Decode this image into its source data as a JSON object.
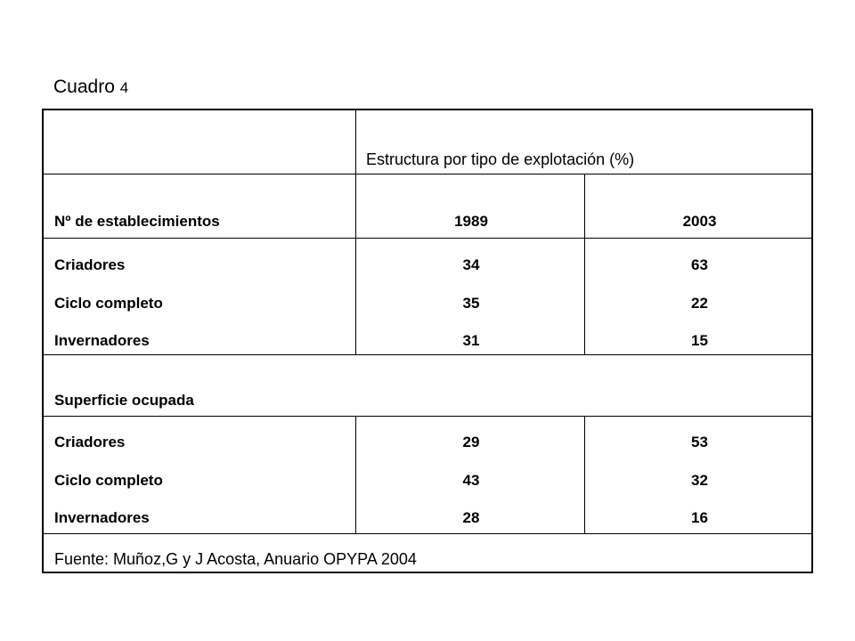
{
  "caption": {
    "label": "Cuadro",
    "number": "4"
  },
  "table": {
    "group_header": "Estructura por tipo de explotación (%)",
    "row_header_label": "Nº de establecimientos",
    "years": [
      "1989",
      "2003"
    ],
    "establecimientos": [
      {
        "label": "Criadores",
        "v1989": "34",
        "v2003": "63"
      },
      {
        "label": "Ciclo completo",
        "v1989": "35",
        "v2003": "22"
      },
      {
        "label": "Invernadores",
        "v1989": "31",
        "v2003": "15"
      }
    ],
    "superficie_label": "Superficie ocupada",
    "superficie": [
      {
        "label": "Criadores",
        "v1989": "29",
        "v2003": "53"
      },
      {
        "label": "Ciclo completo",
        "v1989": "43",
        "v2003": "32"
      },
      {
        "label": "Invernadores",
        "v1989": "28",
        "v2003": "16"
      }
    ],
    "source": "Fuente: Muñoz,G y J Acosta, Anuario OPYPA 2004"
  }
}
